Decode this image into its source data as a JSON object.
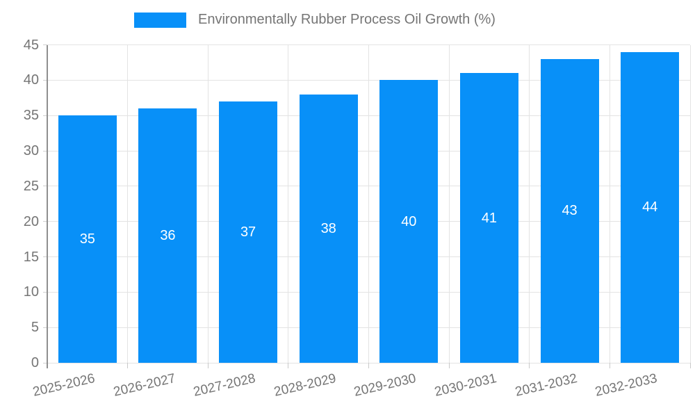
{
  "chart_data": {
    "type": "bar",
    "title": "Environmentally Rubber Process Oil Growth (%)",
    "categories": [
      "2025-2026",
      "2026-2027",
      "2027-2028",
      "2028-2029",
      "2029-2030",
      "2030-2031",
      "2031-2032",
      "2032-2033"
    ],
    "values": [
      35,
      36,
      37,
      38,
      40,
      41,
      43,
      44
    ],
    "xlabel": "",
    "ylabel": "",
    "ylim": [
      0,
      45
    ],
    "yticks": [
      0,
      5,
      10,
      15,
      20,
      25,
      30,
      35,
      40,
      45
    ],
    "grid": "on",
    "legend_position": "top-center",
    "bar_color": "#0890f8",
    "bar_label_color": "#ffffff",
    "axis_label_color": "#757575",
    "gridline_color": "#e3e3e3",
    "axis_line_color": "#8f8f8f"
  }
}
